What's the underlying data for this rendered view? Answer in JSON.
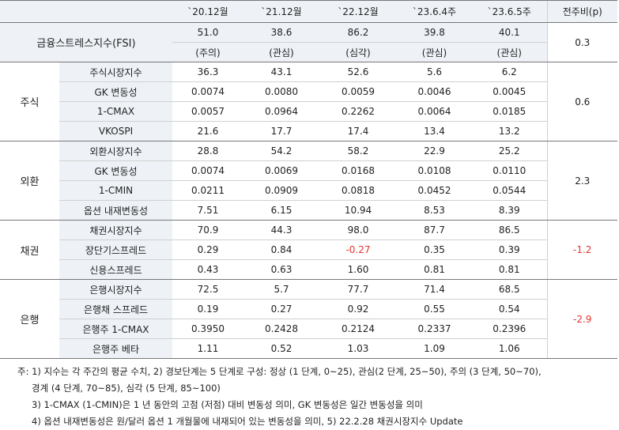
{
  "header": {
    "blank": "",
    "columns": [
      "`20.12월",
      "`21.12월",
      "`22.12월",
      "`23.6.4주",
      "`23.6.5주",
      "전주비(p)"
    ]
  },
  "fsi": {
    "label": "금융스트레스지수(FSI)",
    "values": [
      "51.0",
      "38.6",
      "86.2",
      "39.8",
      "40.1"
    ],
    "levels": [
      "(주의)",
      "(관심)",
      "(심각)",
      "(관심)",
      "(관심)"
    ],
    "change": "0.3"
  },
  "groups": [
    {
      "name": "주식",
      "change": "0.6",
      "rows": [
        {
          "label": "주식시장지수",
          "values": [
            "36.3",
            "43.1",
            "52.6",
            "5.6",
            "6.2"
          ]
        },
        {
          "label": "GK 변동성",
          "values": [
            "0.0074",
            "0.0080",
            "0.0059",
            "0.0046",
            "0.0045"
          ]
        },
        {
          "label": "1-CMAX",
          "values": [
            "0.0057",
            "0.0964",
            "0.2262",
            "0.0064",
            "0.0185"
          ]
        },
        {
          "label": "VKOSPI",
          "values": [
            "21.6",
            "17.7",
            "17.4",
            "13.4",
            "13.2"
          ]
        }
      ]
    },
    {
      "name": "외환",
      "change": "2.3",
      "rows": [
        {
          "label": "외환시장지수",
          "values": [
            "28.8",
            "54.2",
            "58.2",
            "22.9",
            "25.2"
          ]
        },
        {
          "label": "GK 변동성",
          "values": [
            "0.0074",
            "0.0069",
            "0.0168",
            "0.0108",
            "0.0110"
          ]
        },
        {
          "label": "1-CMIN",
          "values": [
            "0.0211",
            "0.0909",
            "0.0818",
            "0.0452",
            "0.0544"
          ]
        },
        {
          "label": "옵션 내재변동성",
          "values": [
            "7.51",
            "6.15",
            "10.94",
            "8.53",
            "8.39"
          ]
        }
      ]
    },
    {
      "name": "채권",
      "change": "-1.2",
      "rows": [
        {
          "label": "채권시장지수",
          "values": [
            "70.9",
            "44.3",
            "98.0",
            "87.7",
            "86.5"
          ]
        },
        {
          "label": "장단기스프레드",
          "values": [
            "0.29",
            "0.84",
            "-0.27",
            "0.35",
            "0.39"
          ]
        },
        {
          "label": "신용스프레드",
          "values": [
            "0.43",
            "0.63",
            "1.60",
            "0.81",
            "0.81"
          ]
        }
      ]
    },
    {
      "name": "은행",
      "change": "-2.9",
      "rows": [
        {
          "label": "은행시장지수",
          "values": [
            "72.5",
            "5.7",
            "77.7",
            "71.4",
            "68.5"
          ]
        },
        {
          "label": "은행채 스프레드",
          "values": [
            "0.19",
            "0.27",
            "0.92",
            "0.55",
            "0.54"
          ]
        },
        {
          "label": "은행주 1-CMAX",
          "values": [
            "0.3950",
            "0.2428",
            "0.2124",
            "0.2337",
            "0.2396"
          ]
        },
        {
          "label": "은행주 베타",
          "values": [
            "1.11",
            "0.52",
            "1.03",
            "1.09",
            "1.06"
          ]
        }
      ]
    }
  ],
  "notes": [
    "주: 1) 지수는 각 주간의 평균 수치, 2) 경보단계는 5 단계로 구성: 정상 (1 단계, 0~25), 관심(2 단계, 25~50), 주의 (3 단계, 50~70),",
    "경계 (4 단계, 70~85), 심각 (5 단계, 85~100)",
    "3) 1-CMAX (1-CMIN)은 1 년 동안의 고점 (저점) 대비 변동성 의미, GK 변동성은 일간 변동성을 의미",
    "4) 옵션 내재변동성은 원/달러 옵션 1 개월물에 내재되어 있는 변동성을 의미, 5) 22.2.28 채권시장지수 Update"
  ],
  "colors": {
    "header_bg": "#eef2f7",
    "negative": "#e3342f",
    "rule": "#777777"
  }
}
